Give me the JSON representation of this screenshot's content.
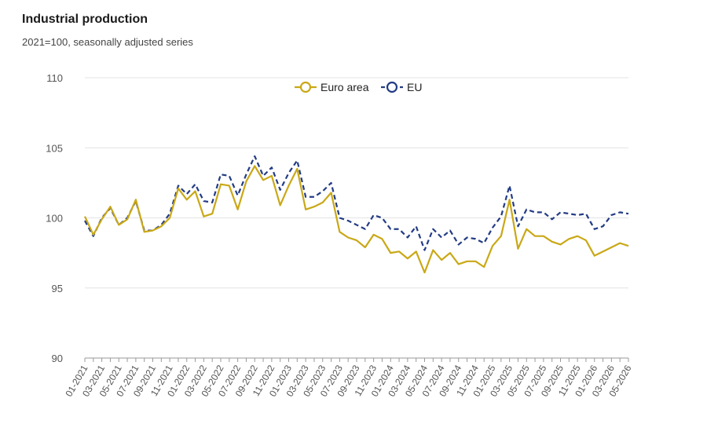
{
  "header": {
    "title": "Industrial production",
    "subtitle": "2021=100, seasonally adjusted series"
  },
  "chart_data": {
    "type": "line",
    "ylim": [
      90,
      110
    ],
    "yticks": [
      90,
      95,
      100,
      105,
      110
    ],
    "x": [
      "01-2021",
      "02-2021",
      "03-2021",
      "04-2021",
      "05-2021",
      "06-2021",
      "07-2021",
      "08-2021",
      "09-2021",
      "10-2021",
      "11-2021",
      "12-2021",
      "01-2022",
      "02-2022",
      "03-2022",
      "04-2022",
      "05-2022",
      "06-2022",
      "07-2022",
      "08-2022",
      "09-2022",
      "10-2022",
      "11-2022",
      "12-2022",
      "01-2023",
      "02-2023",
      "03-2023",
      "04-2023",
      "05-2023",
      "06-2023",
      "07-2023",
      "08-2023",
      "09-2023",
      "10-2023",
      "11-2023",
      "12-2023",
      "01-2024",
      "02-2024",
      "03-2024",
      "04-2024",
      "05-2024",
      "06-2024",
      "07-2024",
      "08-2024",
      "09-2024",
      "10-2024",
      "11-2024",
      "12-2024",
      "01-2025",
      "02-2025",
      "03-2025",
      "04-2025",
      "05-2025",
      "06-2025",
      "07-2025",
      "08-2025",
      "09-2025",
      "10-2025",
      "11-2025",
      "12-2025",
      "01-2026",
      "02-2026",
      "03-2026",
      "04-2026",
      "05-2026"
    ],
    "xtick_labels": [
      "01-2021",
      "03-2021",
      "05-2021",
      "07-2021",
      "09-2021",
      "11-2021",
      "01-2022",
      "03-2022",
      "05-2022",
      "07-2022",
      "09-2022",
      "11-2022",
      "01-2023",
      "03-2023",
      "05-2023",
      "07-2023",
      "09-2023",
      "11-2023",
      "01-2024",
      "03-2024",
      "05-2024",
      "07-2024",
      "09-2024",
      "11-2024",
      "01-2025",
      "03-2025",
      "05-2025",
      "07-2025",
      "09-2025",
      "11-2025",
      "01-2026",
      "03-2026",
      "05-2026"
    ],
    "series": [
      {
        "name": "Euro area",
        "color": "#c9a816",
        "style": "solid",
        "values": [
          100.1,
          98.8,
          99.9,
          100.8,
          99.5,
          99.9,
          101.3,
          99.0,
          99.1,
          99.4,
          100.0,
          102.1,
          101.3,
          101.9,
          100.1,
          100.3,
          102.4,
          102.3,
          100.6,
          102.6,
          103.7,
          102.7,
          103.0,
          100.9,
          102.3,
          103.5,
          100.6,
          100.8,
          101.1,
          101.8,
          99.0,
          98.6,
          98.4,
          97.9,
          98.8,
          98.5,
          97.5,
          97.6,
          97.1,
          97.6,
          96.1,
          97.7,
          97.0,
          97.5,
          96.7,
          96.9,
          96.9,
          96.5,
          98.0,
          98.7,
          101.3,
          97.8,
          99.2,
          98.7,
          98.7,
          98.3,
          98.1,
          98.5,
          98.7,
          98.4,
          97.3,
          97.6,
          97.9,
          98.2,
          98.0
        ]
      },
      {
        "name": "EU",
        "color": "#233c84",
        "style": "dashed",
        "values": [
          99.8,
          98.7,
          100.0,
          100.7,
          99.5,
          100.0,
          101.2,
          99.1,
          99.1,
          99.5,
          100.3,
          102.3,
          101.7,
          102.4,
          101.2,
          101.1,
          103.1,
          103.0,
          101.6,
          103.1,
          104.4,
          103.0,
          103.6,
          102.0,
          103.2,
          104.1,
          101.5,
          101.5,
          101.9,
          102.5,
          100.0,
          99.8,
          99.5,
          99.2,
          100.2,
          100.0,
          99.2,
          99.2,
          98.6,
          99.4,
          97.7,
          99.2,
          98.6,
          99.1,
          98.1,
          98.6,
          98.5,
          98.2,
          99.3,
          100.1,
          102.3,
          99.4,
          100.6,
          100.4,
          100.4,
          99.9,
          100.4,
          100.3,
          100.2,
          100.3,
          99.2,
          99.4,
          100.2,
          100.4,
          100.3
        ]
      }
    ],
    "legend": {
      "position": "top-center",
      "items": [
        "Euro area",
        "EU"
      ]
    },
    "grid": true
  }
}
